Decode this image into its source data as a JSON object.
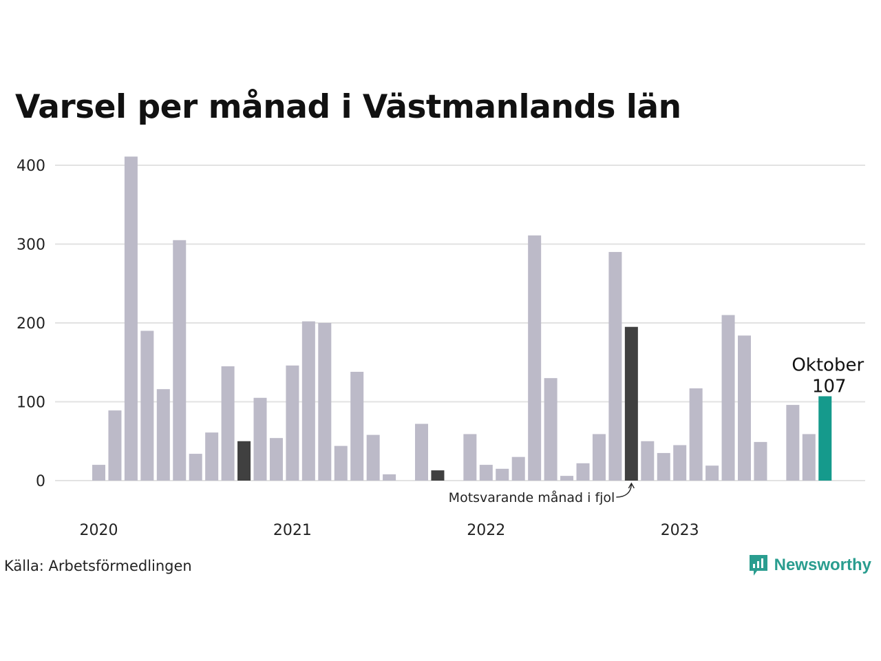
{
  "title": "Varsel per månad i Västmanlands län",
  "source": "Källa: Arbetsförmedlingen",
  "brand": {
    "name": "Newsworthy",
    "icon": "newsworthy-logo-icon",
    "color": "#2a9d8f"
  },
  "chart_data": {
    "type": "bar",
    "title": "Varsel per månad i Västmanlands län",
    "xlabel": "",
    "ylabel": "",
    "ylim": [
      0,
      400
    ],
    "yticks": [
      0,
      100,
      200,
      300,
      400
    ],
    "grid": true,
    "year_labels": [
      "2020",
      "2021",
      "2022",
      "2023"
    ],
    "categories": [
      "2020-01",
      "2020-02",
      "2020-03",
      "2020-04",
      "2020-05",
      "2020-06",
      "2020-07",
      "2020-08",
      "2020-09",
      "2020-10",
      "2020-11",
      "2020-12",
      "2021-01",
      "2021-02",
      "2021-03",
      "2021-04",
      "2021-05",
      "2021-06",
      "2021-07",
      "2021-08",
      "2021-09",
      "2021-10",
      "2021-11",
      "2021-12",
      "2022-01",
      "2022-02",
      "2022-03",
      "2022-04",
      "2022-05",
      "2022-06",
      "2022-07",
      "2022-08",
      "2022-09",
      "2022-10",
      "2022-11",
      "2022-12",
      "2023-01",
      "2023-02",
      "2023-03",
      "2023-04",
      "2023-05",
      "2023-06",
      "2023-07",
      "2023-08",
      "2023-09",
      "2023-10"
    ],
    "values": [
      20,
      89,
      411,
      190,
      116,
      305,
      34,
      61,
      145,
      50,
      105,
      54,
      146,
      202,
      200,
      44,
      138,
      58,
      8,
      0,
      72,
      13,
      0,
      59,
      20,
      15,
      30,
      311,
      130,
      6,
      22,
      59,
      290,
      195,
      50,
      35,
      45,
      117,
      19,
      210,
      184,
      49,
      0,
      96,
      59,
      107
    ],
    "highlight_same_month_last_year": [
      "2020-10",
      "2021-10",
      "2022-10"
    ],
    "highlight_current": "2023-10",
    "colors": {
      "default": "#bcbac8",
      "same_month_last_year": "#404040",
      "current": "#159a8c",
      "grid": "#e2e2e2"
    },
    "annotations": {
      "current_label": "Oktober",
      "current_value": "107",
      "same_month_label": "Motsvarande månad i fjol"
    }
  }
}
